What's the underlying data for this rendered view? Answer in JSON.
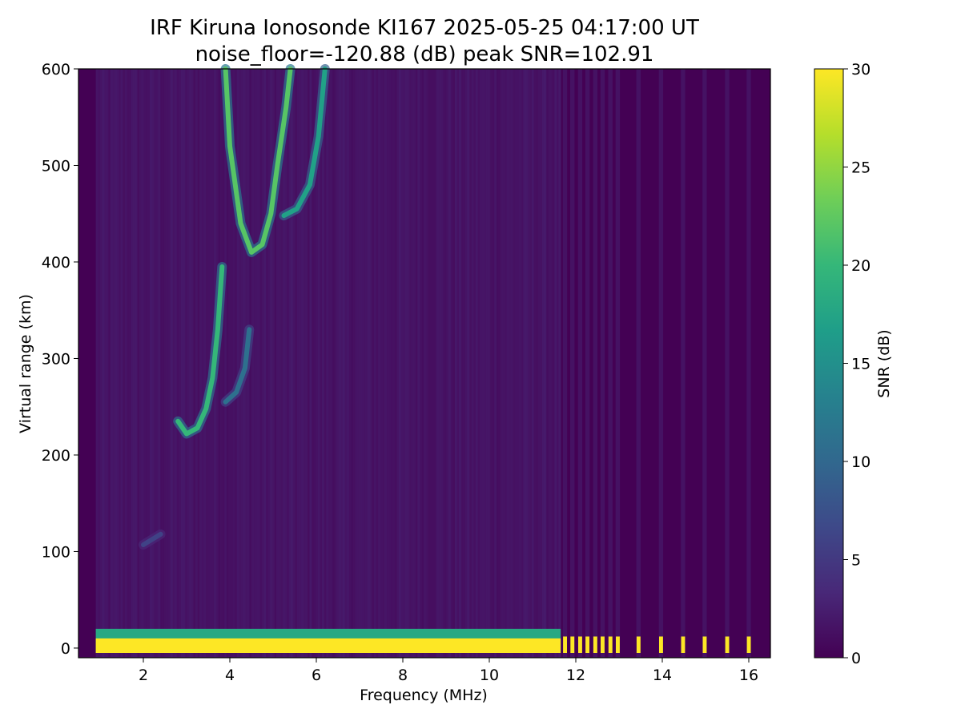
{
  "chart_data": {
    "type": "heatmap",
    "title": "IRF Kiruna Ionosonde KI167 2025-05-25 04:17:00  UT",
    "subtitle": "noise_floor=-120.88 (dB) peak SNR=102.91",
    "xlabel": "Frequency (MHz)",
    "ylabel": "Virtual range (km)",
    "colorbar_label": "SNR (dB)",
    "colormap": [
      "#440154",
      "#482878",
      "#3e4989",
      "#31688e",
      "#26828e",
      "#1f9e89",
      "#35b779",
      "#6ece58",
      "#b5de2b",
      "#fde725"
    ],
    "xlim": [
      0.5,
      16.5
    ],
    "ylim": [
      -10,
      600
    ],
    "clim": [
      0,
      30
    ],
    "x_ticks": [
      2,
      4,
      6,
      8,
      10,
      12,
      14,
      16
    ],
    "y_ticks": [
      0,
      100,
      200,
      300,
      400,
      500,
      600
    ],
    "cbar_ticks": [
      0,
      5,
      10,
      15,
      20,
      25,
      30
    ],
    "x_tick_labels": [
      "2",
      "4",
      "6",
      "8",
      "10",
      "12",
      "14",
      "16"
    ],
    "y_tick_labels": [
      "0",
      "100",
      "200",
      "300",
      "400",
      "500",
      "600"
    ],
    "cbar_tick_labels": [
      "0",
      "5",
      "10",
      "15",
      "20",
      "25",
      "30"
    ],
    "freq_start": 0.9,
    "freq_dense_end": 11.65,
    "sparse_freqs": [
      11.75,
      11.92,
      12.1,
      12.27,
      12.45,
      12.62,
      12.8,
      12.97,
      13.45,
      13.97,
      14.48,
      14.98,
      15.5,
      16.0
    ],
    "ground_clutter": {
      "range_min": -5,
      "range_max": 20,
      "snr": 30
    },
    "echo_traces": [
      {
        "name": "E-layer trace",
        "points": [
          [
            2.0,
            107
          ],
          [
            2.4,
            118
          ]
        ],
        "snr": 6
      },
      {
        "name": "F1 ordinary trace",
        "points": [
          [
            2.8,
            235
          ],
          [
            3.0,
            222
          ],
          [
            3.25,
            228
          ],
          [
            3.45,
            248
          ],
          [
            3.6,
            280
          ],
          [
            3.72,
            330
          ],
          [
            3.82,
            395
          ]
        ],
        "snr": 20
      },
      {
        "name": "F1 extraordinary trace",
        "points": [
          [
            3.9,
            255
          ],
          [
            4.15,
            265
          ],
          [
            4.35,
            290
          ],
          [
            4.45,
            330
          ]
        ],
        "snr": 11
      },
      {
        "name": "F2 ordinary trace",
        "points": [
          [
            3.9,
            600
          ],
          [
            4.0,
            520
          ],
          [
            4.25,
            440
          ],
          [
            4.5,
            410
          ],
          [
            4.75,
            418
          ],
          [
            4.95,
            450
          ],
          [
            5.1,
            500
          ],
          [
            5.3,
            560
          ],
          [
            5.4,
            600
          ]
        ],
        "snr": 22
      },
      {
        "name": "F2 extraordinary trace",
        "points": [
          [
            5.25,
            448
          ],
          [
            5.55,
            455
          ],
          [
            5.85,
            480
          ],
          [
            6.05,
            530
          ],
          [
            6.2,
            600
          ]
        ],
        "snr": 17
      }
    ]
  }
}
